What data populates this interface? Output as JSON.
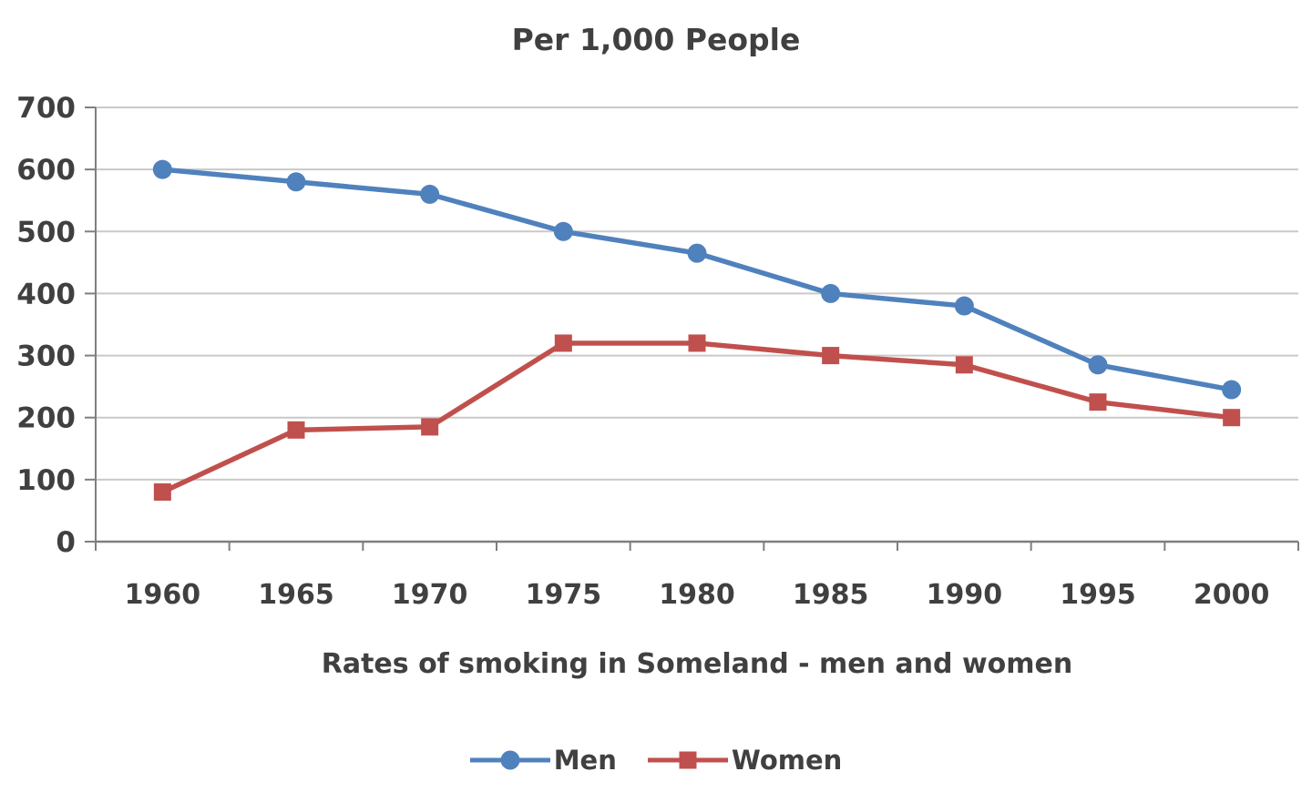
{
  "chart_data": {
    "type": "line",
    "title": "Per 1,000 People",
    "xlabel": "Rates of smoking in Someland - men and women",
    "ylabel": "",
    "categories": [
      "1960",
      "1965",
      "1970",
      "1975",
      "1980",
      "1985",
      "1990",
      "1995",
      "2000"
    ],
    "series": [
      {
        "name": "Men",
        "marker": "circle",
        "color": "#4f81bd",
        "values": [
          600,
          580,
          560,
          500,
          465,
          400,
          380,
          285,
          245
        ]
      },
      {
        "name": "Women",
        "marker": "square",
        "color": "#c0504d",
        "values": [
          80,
          180,
          185,
          320,
          320,
          300,
          285,
          225,
          200
        ]
      }
    ],
    "ylim": [
      0,
      700
    ],
    "ytick_step": 100,
    "grid": true,
    "legend_position": "bottom",
    "colors": {
      "text": "#404040",
      "grid": "#c9c9c9",
      "axis": "#7f7f7f",
      "background": "#ffffff"
    }
  }
}
